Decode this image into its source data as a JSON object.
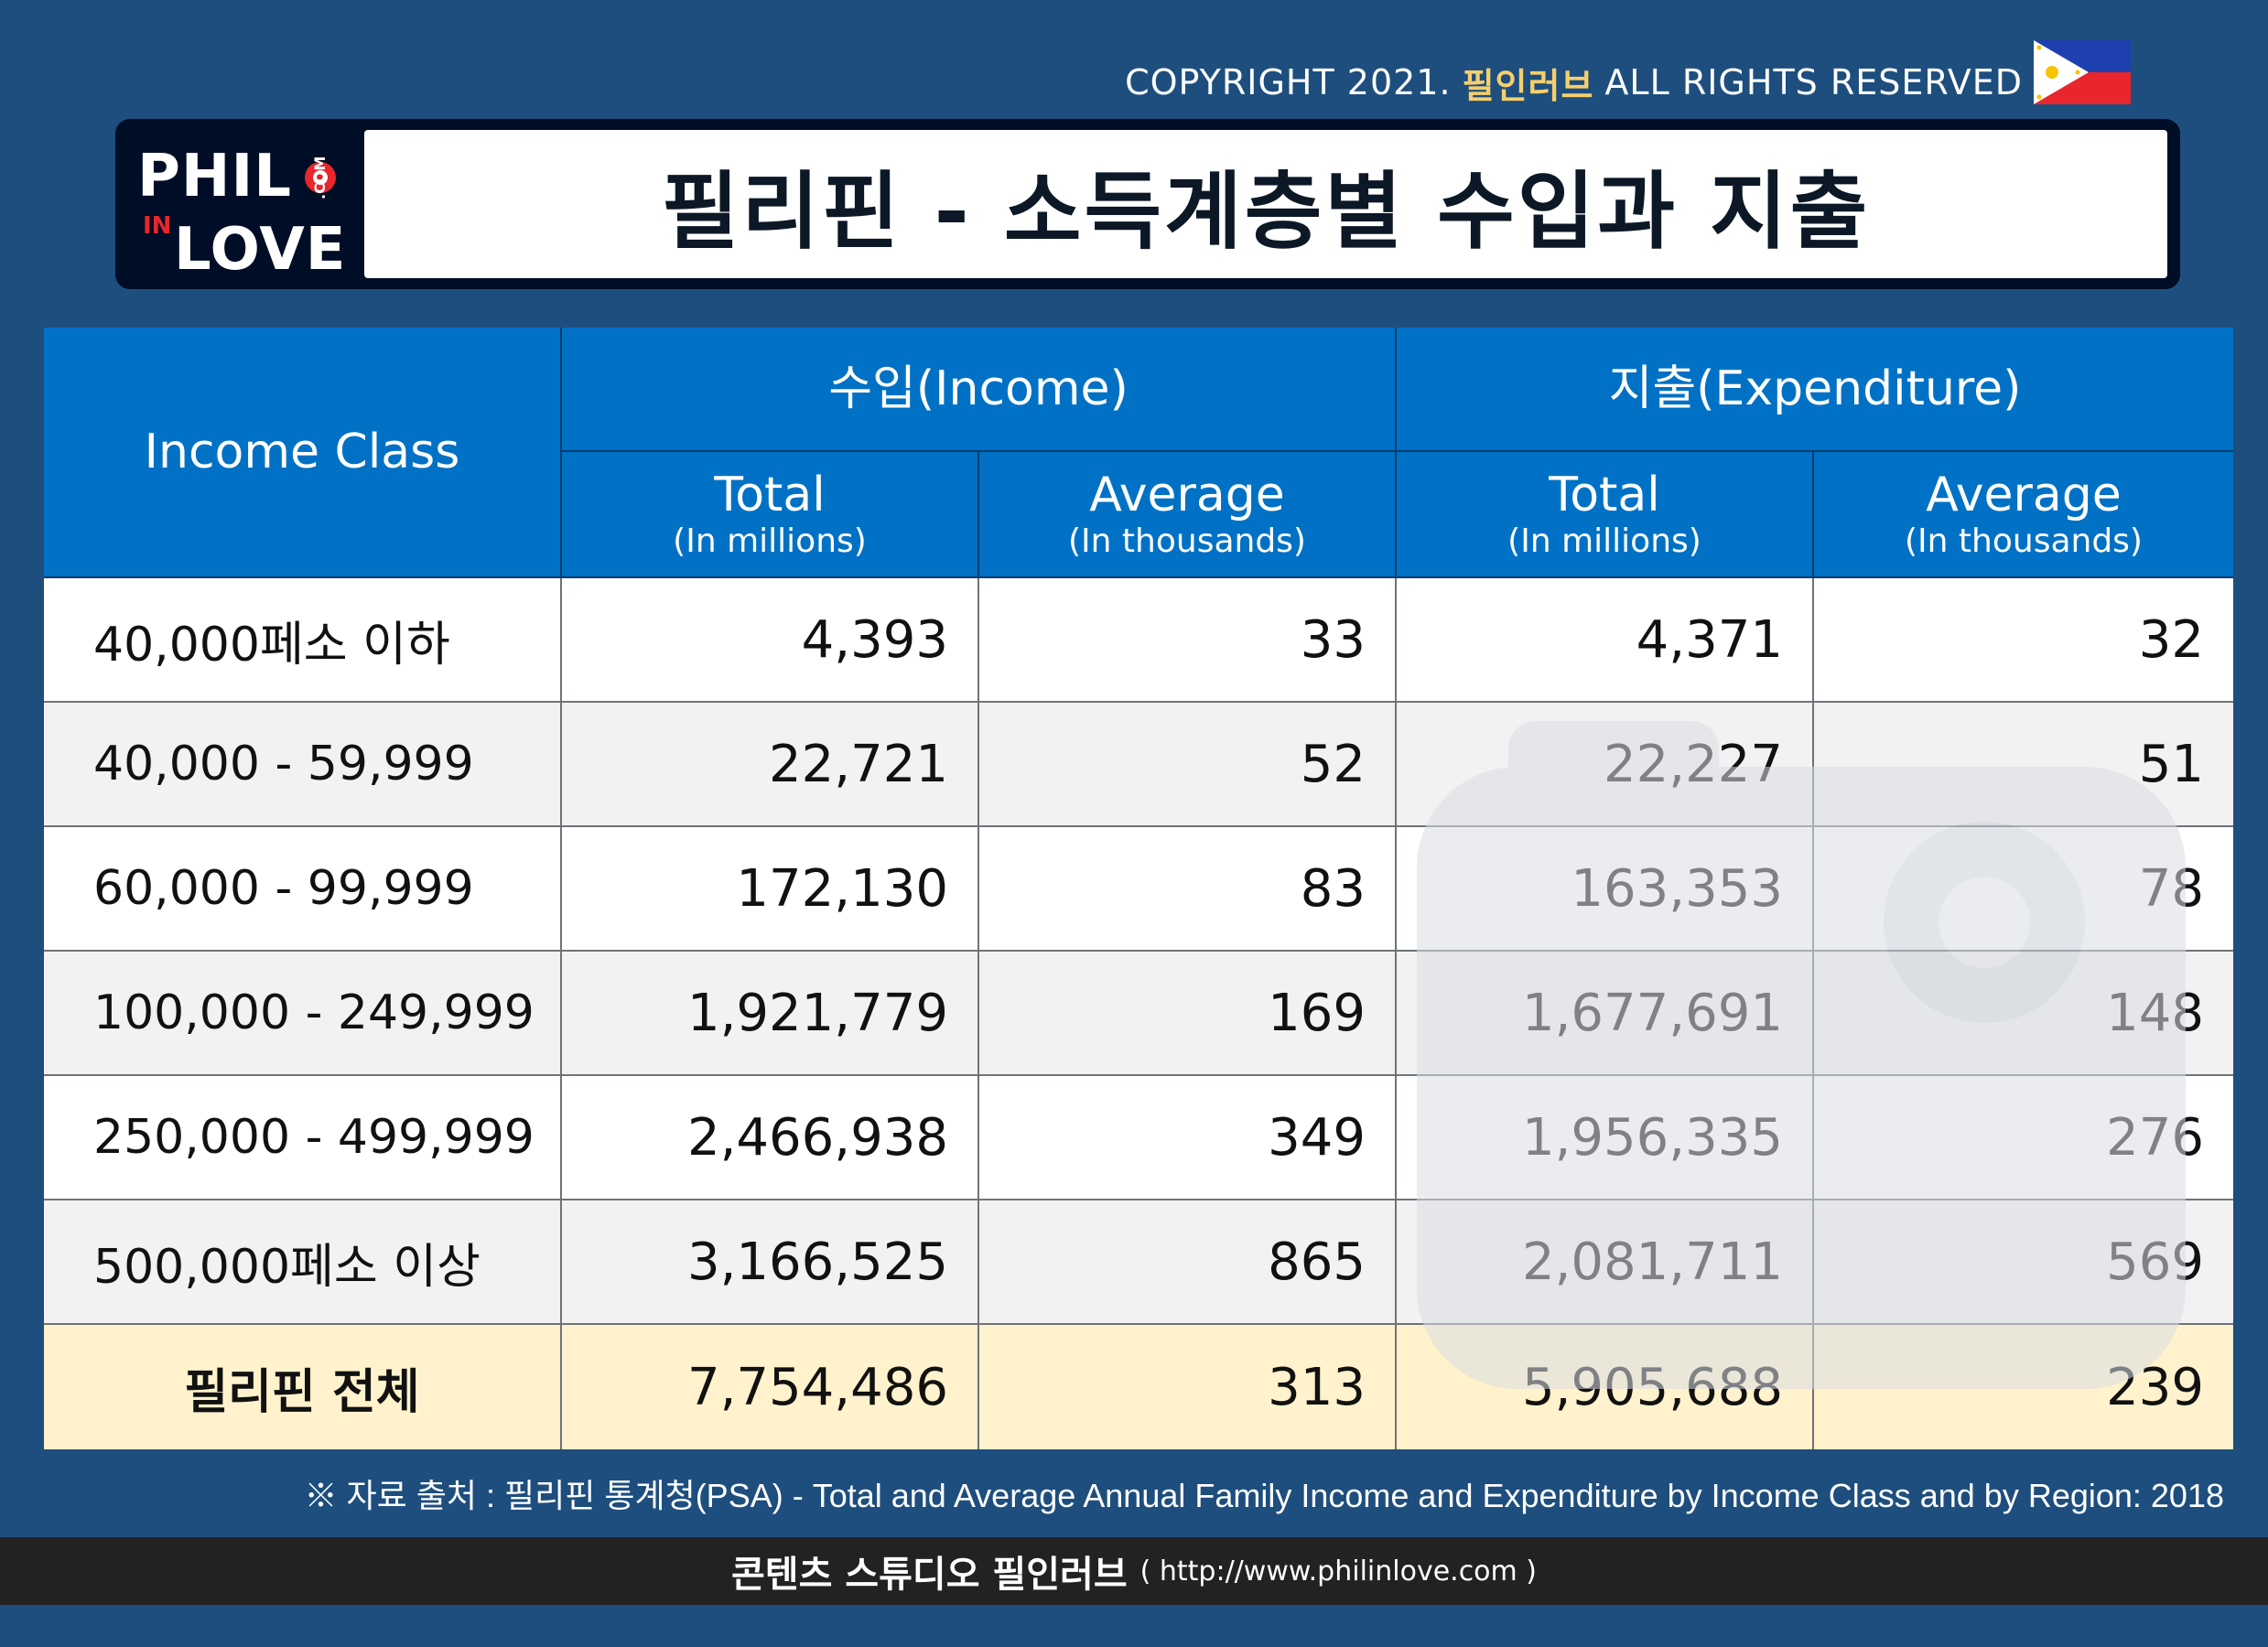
{
  "copyright": {
    "prefix": "COPYRIGHT 2021.",
    "brand": "필인러브",
    "suffix": "ALL RIGHTS RESERVED"
  },
  "logo": {
    "line1": "PHIL",
    "line2": "IN",
    "line3": "LOVE",
    "domain": ".COM"
  },
  "title": "필리핀 - 소득계층별 수입과 지출",
  "table": {
    "header": {
      "class_col": "Income Class",
      "income_group": "수입(Income)",
      "expenditure_group": "지출(Expenditure)",
      "total_label": "Total",
      "total_unit": "(In millions)",
      "average_label": "Average",
      "average_unit": "(In thousands)"
    },
    "rows": [
      {
        "class": "40,000페소 이하",
        "inc_total": "4,393",
        "inc_avg": "33",
        "exp_total": "4,371",
        "exp_avg": "32"
      },
      {
        "class": "40,000 - 59,999",
        "inc_total": "22,721",
        "inc_avg": "52",
        "exp_total": "22,227",
        "exp_avg": "51"
      },
      {
        "class": "60,000 - 99,999",
        "inc_total": "172,130",
        "inc_avg": "83",
        "exp_total": "163,353",
        "exp_avg": "78"
      },
      {
        "class": "100,000 - 249,999",
        "inc_total": "1,921,779",
        "inc_avg": "169",
        "exp_total": "1,677,691",
        "exp_avg": "148"
      },
      {
        "class": "250,000 - 499,999",
        "inc_total": "2,466,938",
        "inc_avg": "349",
        "exp_total": "1,956,335",
        "exp_avg": "276"
      },
      {
        "class": "500,000페소 이상",
        "inc_total": "3,166,525",
        "inc_avg": "865",
        "exp_total": "2,081,711",
        "exp_avg": "569"
      }
    ],
    "total_row": {
      "class": "필리핀 전체",
      "inc_total": "7,754,486",
      "inc_avg": "313",
      "exp_total": "5,905,688",
      "exp_avg": "239"
    }
  },
  "source": "※ 자료 출처 : 필리핀 통계청(PSA) - Total and Average Annual Family Income and Expenditure by Income Class and by Region: 2018",
  "footer": {
    "studio": "콘텐츠 스튜디오 필인러브",
    "url": "( http://www.philinlove.com )"
  },
  "colors": {
    "background": "#1d4e7e",
    "header": "#0071c5",
    "total_row": "#fff2cc",
    "brand_accent": "#f6cf6a"
  }
}
